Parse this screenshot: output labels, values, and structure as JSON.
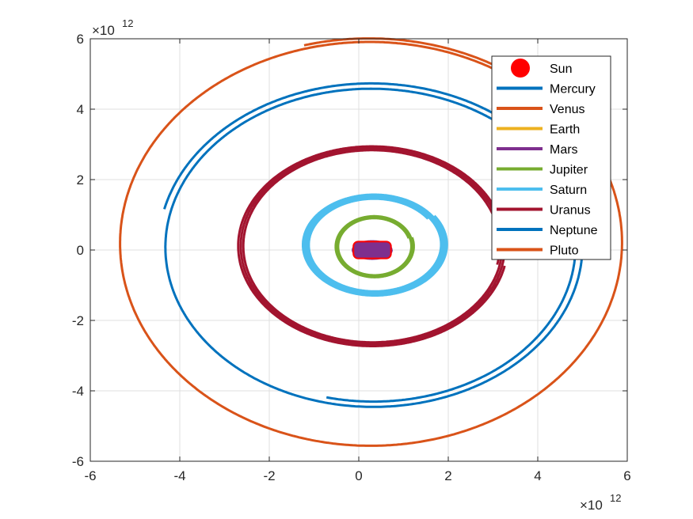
{
  "chart_data": {
    "type": "line",
    "title": "",
    "xlabel": "",
    "ylabel": "",
    "xlim": [
      -6,
      6
    ],
    "ylim": [
      -6,
      6
    ],
    "axis_multiplier_label": "×10",
    "axis_exponent": "12",
    "x_ticks": [
      "-6",
      "-4",
      "-2",
      "0",
      "2",
      "4",
      "6"
    ],
    "y_ticks": [
      "-6",
      "-4",
      "-2",
      "0",
      "2",
      "4",
      "6"
    ],
    "grid": true,
    "legend_position": "top-right",
    "series": [
      {
        "name": "Sun",
        "marker": "circle",
        "color": "#ff0000",
        "x": [
          0
        ],
        "y": [
          0
        ]
      },
      {
        "name": "Mercury",
        "color": "#0072bd",
        "rx": 0.12,
        "ry": 0.05,
        "cx": 0.18,
        "cy": 0.0
      },
      {
        "name": "Venus",
        "color": "#d95319",
        "rx": 0.18,
        "ry": 0.1,
        "cx": 0.22,
        "cy": 0.0
      },
      {
        "name": "Earth",
        "color": "#edb120",
        "rx": 0.26,
        "ry": 0.16,
        "cx": 0.3,
        "cy": 0.0
      },
      {
        "name": "Mars",
        "color": "#7e2f8e",
        "rx": 0.42,
        "ry": 0.24,
        "cx": 0.3,
        "cy": 0.0
      },
      {
        "name": "Jupiter",
        "color": "#77ac30",
        "rx": 0.8,
        "ry": 0.8,
        "cx": 0.35,
        "cy": 0.1
      },
      {
        "name": "Saturn",
        "color": "#4dbeee",
        "rx": 1.45,
        "ry": 1.3,
        "cx": 0.35,
        "cy": 0.15
      },
      {
        "name": "Uranus",
        "color": "#a2142f",
        "rx": 2.85,
        "ry": 2.7,
        "cx": 0.3,
        "cy": 0.12
      },
      {
        "name": "Neptune",
        "color": "#0072bd",
        "rx": 4.5,
        "ry": 4.4,
        "cx": 0.3,
        "cy": 0.1
      },
      {
        "name": "Pluto",
        "color": "#d95319",
        "rx": 5.55,
        "ry": 5.7,
        "cx": 0.25,
        "cy": 0.2
      }
    ]
  }
}
